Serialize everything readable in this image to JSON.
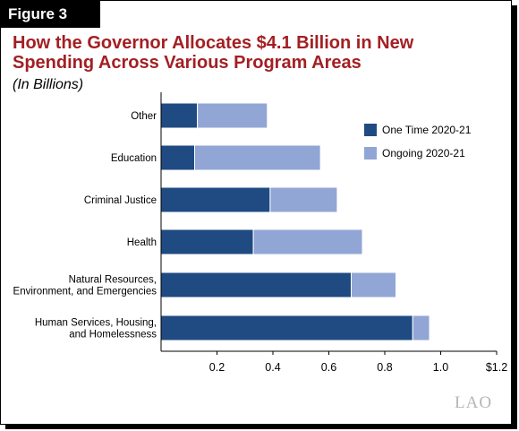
{
  "figure_label": "Figure 3",
  "title": "How the Governor Allocates $4.1 Billion in New Spending Across Various Program Areas",
  "subtitle": "(In Billions)",
  "logo_text": "LAO",
  "colors": {
    "one_time": "#1f4b82",
    "ongoing": "#91a6d5",
    "title": "#a31f23"
  },
  "chart_data": {
    "type": "bar",
    "orientation": "horizontal",
    "stacked": true,
    "categories": [
      [
        "Other"
      ],
      [
        "Education"
      ],
      [
        "Criminal Justice"
      ],
      [
        "Health"
      ],
      [
        "Natural Resources,",
        "Environment, and Emergencies"
      ],
      [
        "Human Services, Housing,",
        "and Homelessness"
      ]
    ],
    "series": [
      {
        "name": "One Time 2020-21",
        "values": [
          0.13,
          0.12,
          0.39,
          0.33,
          0.68,
          0.9
        ]
      },
      {
        "name": "Ongoing 2020-21",
        "values": [
          0.25,
          0.45,
          0.24,
          0.39,
          0.16,
          0.06
        ]
      }
    ],
    "xlim": [
      0,
      1.2
    ],
    "xticks": [
      0.2,
      0.4,
      0.6,
      0.8,
      1.0,
      1.2
    ],
    "xtick_labels": [
      "0.2",
      "0.4",
      "0.6",
      "0.8",
      "1.0",
      "$1.2"
    ],
    "legend_position": "top-right",
    "grid": false
  }
}
